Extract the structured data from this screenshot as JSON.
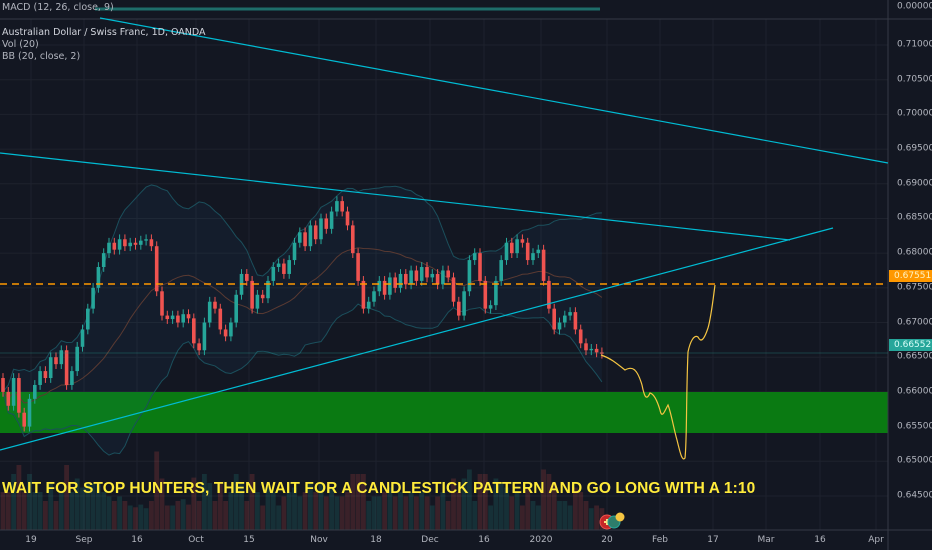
{
  "header": {
    "macd_label": "MACD (12, 26, close, 9)",
    "symbol_title": "Australian Dollar / Swiss Franc, 1D, OANDA",
    "volume_label": "Vol (20)",
    "bb_label": "BB (20, close, 2)"
  },
  "annotation": "WAIT FOR STOP HUNTERS, THEN WAIT FOR A CANDLESTICK PATTERN AND GO LONG WITH A 1:10",
  "colors": {
    "background": "#131722",
    "up": "#26a69a",
    "down": "#ef5350",
    "trendline": "#00bcd4",
    "support_zone": "#0a7a12",
    "dashed_level": "#ff9800",
    "drawing": "#f5c542",
    "text": "#b2b5be"
  },
  "price_tags": {
    "level": "0.67551",
    "last": "0.66552"
  },
  "icons": [
    "flag-icon",
    "dividend-icon",
    "earnings-icon"
  ],
  "chart_data": {
    "type": "candlestick",
    "title": "Australian Dollar / Swiss Franc, 1D, OANDA",
    "y_axis": {
      "range": [
        0.643,
        0.712
      ],
      "ticks": [
        "0.71000",
        "0.70500",
        "0.70000",
        "0.69500",
        "0.69000",
        "0.68500",
        "0.68000",
        "0.67500",
        "0.67000",
        "0.66500",
        "0.66000",
        "0.65500",
        "0.65000",
        "0.64500"
      ],
      "macd_tick": "0.00000"
    },
    "x_axis": {
      "ticks": [
        "19",
        "Sep",
        "16",
        "Oct",
        "15",
        "Nov",
        "18",
        "Dec",
        "16",
        "2020",
        "20",
        "Feb",
        "17",
        "Mar",
        "16",
        "Apr"
      ]
    },
    "grid": true,
    "first_open": 0.662,
    "close": [
      0.66,
      0.658,
      0.662,
      0.657,
      0.655,
      0.659,
      0.661,
      0.663,
      0.662,
      0.665,
      0.664,
      0.666,
      0.661,
      0.663,
      0.6665,
      0.669,
      0.672,
      0.675,
      0.678,
      0.68,
      0.6815,
      0.6805,
      0.682,
      0.681,
      0.6815,
      0.6812,
      0.6818,
      0.682,
      0.681,
      0.6745,
      0.671,
      0.6705,
      0.671,
      0.67,
      0.6712,
      0.6706,
      0.667,
      0.666,
      0.67,
      0.673,
      0.672,
      0.669,
      0.668,
      0.67,
      0.674,
      0.677,
      0.676,
      0.672,
      0.674,
      0.6735,
      0.676,
      0.678,
      0.6785,
      0.677,
      0.679,
      0.6815,
      0.683,
      0.681,
      0.684,
      0.682,
      0.685,
      0.6835,
      0.686,
      0.6875,
      0.686,
      0.684,
      0.68,
      0.676,
      0.672,
      0.673,
      0.6745,
      0.676,
      0.674,
      0.6765,
      0.675,
      0.677,
      0.6755,
      0.6775,
      0.676,
      0.678,
      0.6765,
      0.677,
      0.6755,
      0.6775,
      0.6765,
      0.673,
      0.671,
      0.6745,
      0.679,
      0.68,
      0.676,
      0.672,
      0.6725,
      0.676,
      0.679,
      0.6815,
      0.68,
      0.682,
      0.6815,
      0.679,
      0.68,
      0.6805,
      0.676,
      0.672,
      0.669,
      0.67,
      0.671,
      0.6715,
      0.669,
      0.667,
      0.666,
      0.6662,
      0.6657,
      0.6655
    ],
    "support_zone": [
      0.655,
      0.66
    ],
    "horizontal_level": 0.67551,
    "last_price": 0.66552,
    "bollinger": {
      "length": 20,
      "mult": 2
    }
  }
}
